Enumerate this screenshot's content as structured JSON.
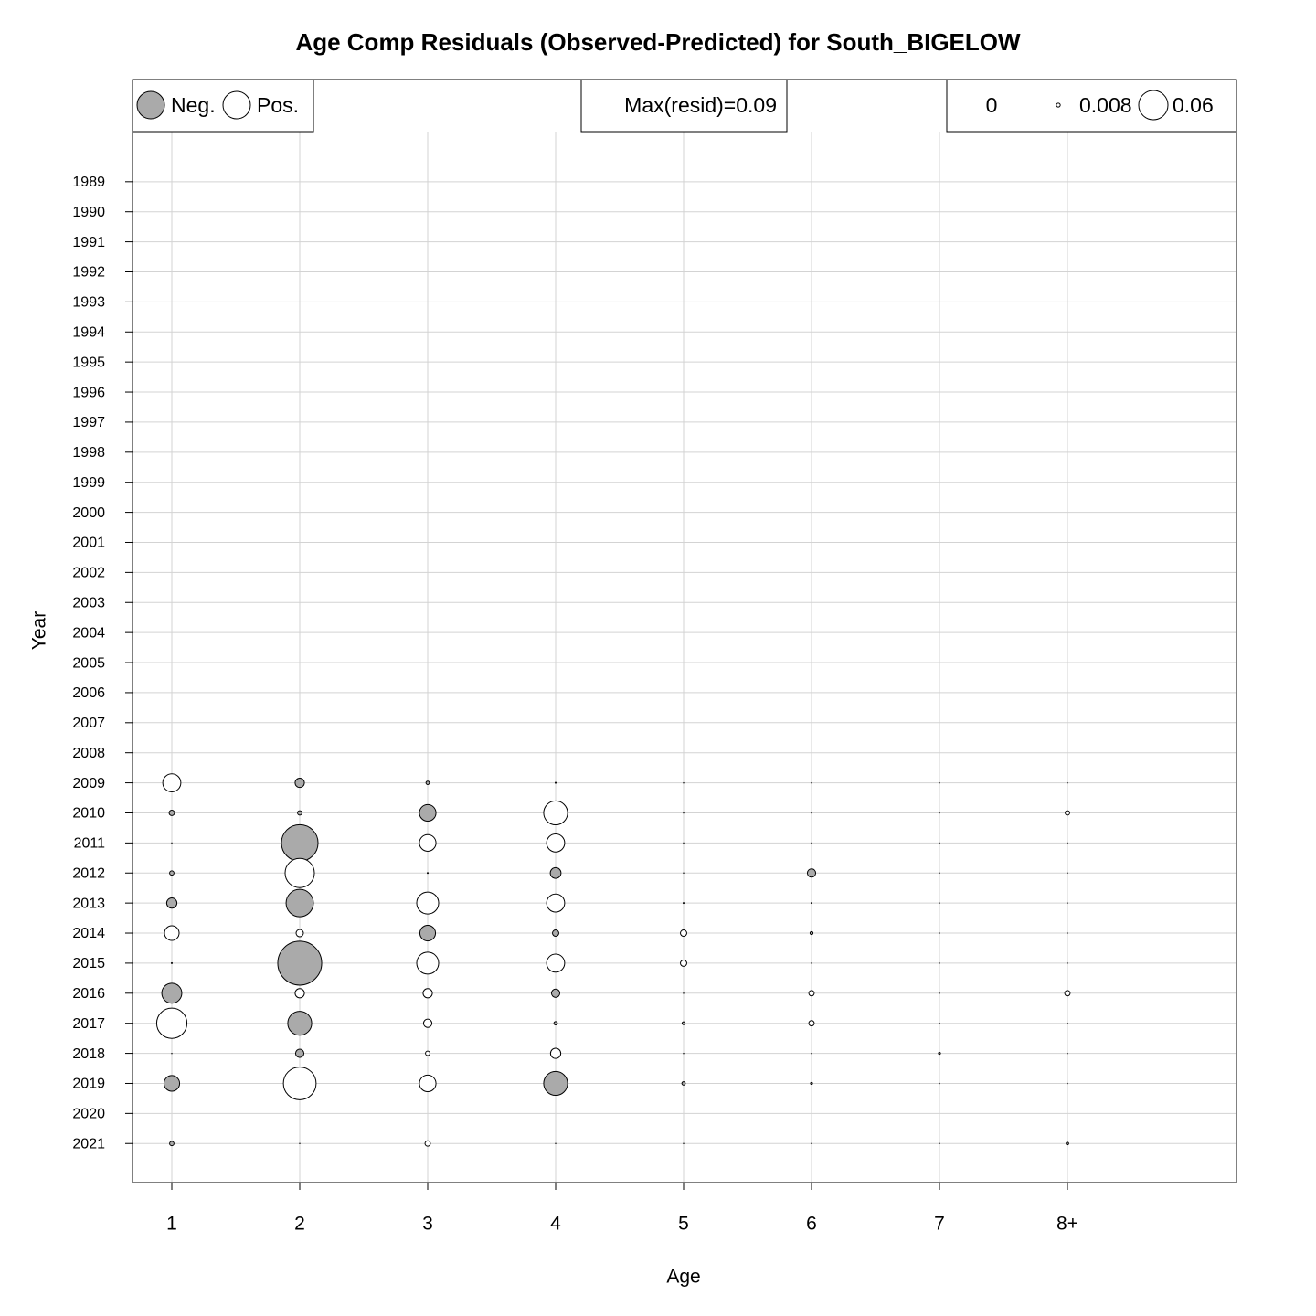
{
  "chart_data": {
    "type": "bubble",
    "title": "Age Comp Residuals (Observed-Predicted) for South_BIGELOW",
    "x_label": "Age",
    "y_label": "Year",
    "categories": [
      "1",
      "2",
      "3",
      "4",
      "5",
      "6",
      "7",
      "8+"
    ],
    "ylim": [
      1985.6,
      2022.3
    ],
    "yticks": [
      1989,
      1990,
      1991,
      1992,
      1993,
      1994,
      1995,
      1996,
      1997,
      1998,
      1999,
      2000,
      2001,
      2002,
      2003,
      2004,
      2005,
      2006,
      2007,
      2008,
      2009,
      2010,
      2011,
      2012,
      2013,
      2014,
      2015,
      2016,
      2017,
      2018,
      2019,
      2020,
      2021
    ],
    "grid": true,
    "neg_color": "#aaaaaa",
    "pos_color": "#ffffff",
    "legend": {
      "neg_label": "Neg.",
      "pos_label": "Pos.",
      "max_label": "Max(resid)=0.09",
      "sizes": [
        0,
        0.008,
        0.06
      ]
    },
    "rows": [
      {
        "year": 2009,
        "residuals": [
          0.037,
          -0.019,
          -0.007,
          -0.002,
          0.001,
          0.001,
          0.001,
          0.001
        ]
      },
      {
        "year": 2010,
        "residuals": [
          -0.011,
          -0.009,
          -0.034,
          0.049,
          0.001,
          0.001,
          0.001,
          0.009
        ]
      },
      {
        "year": 2011,
        "residuals": [
          0.001,
          -0.075,
          0.034,
          0.037,
          0.001,
          0.001,
          0.001,
          0.001
        ]
      },
      {
        "year": 2012,
        "residuals": [
          -0.009,
          0.06,
          0.002,
          -0.022,
          0.001,
          -0.017,
          0.001,
          0.001
        ]
      },
      {
        "year": 2013,
        "residuals": [
          -0.021,
          -0.056,
          0.045,
          0.037,
          0.002,
          0.002,
          0.001,
          0.001
        ]
      },
      {
        "year": 2014,
        "residuals": [
          0.03,
          0.015,
          -0.032,
          -0.013,
          0.013,
          -0.006,
          0.001,
          0.001
        ]
      },
      {
        "year": 2015,
        "residuals": [
          0.002,
          -0.09,
          0.045,
          0.037,
          0.013,
          0.001,
          0.001,
          0.001
        ]
      },
      {
        "year": 2016,
        "residuals": [
          -0.041,
          0.019,
          0.019,
          -0.017,
          0.001,
          0.011,
          0.001,
          0.011
        ]
      },
      {
        "year": 2017,
        "residuals": [
          0.062,
          -0.049,
          0.017,
          -0.007,
          -0.006,
          0.011,
          0.001,
          0.001
        ]
      },
      {
        "year": 2018,
        "residuals": [
          0.001,
          -0.017,
          0.009,
          0.021,
          0.001,
          0.001,
          -0.004,
          0.001
        ]
      },
      {
        "year": 2019,
        "residuals": [
          -0.032,
          0.067,
          0.034,
          -0.049,
          -0.007,
          -0.004,
          0.001,
          0.001
        ]
      },
      {
        "year": 2021,
        "residuals": [
          -0.009,
          0.001,
          0.011,
          0.001,
          0.001,
          0.001,
          0.001,
          -0.005
        ]
      }
    ]
  }
}
